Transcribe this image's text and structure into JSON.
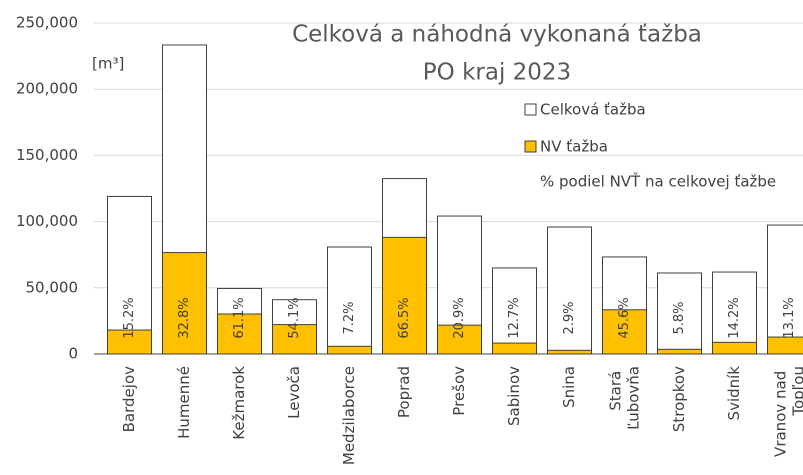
{
  "chart_data": {
    "type": "bar",
    "title": [
      "Celková a náhodná vykonaná ťažba",
      "PO kraj 2023"
    ],
    "y_unit": "[m³]",
    "categories": [
      "Bardejov",
      "Humenné",
      "Kežmarok",
      "Levoča",
      "Medzilaborce",
      "Poprad",
      "Prešov",
      "Sabinov",
      "Snina",
      "Stará Ľubovňa",
      "Stropkov",
      "Svidník",
      "Vranov nad Topľou"
    ],
    "series": [
      {
        "name": "Celková ťažba",
        "color": "#ffffff",
        "values": [
          119000,
          233400,
          49500,
          41000,
          80800,
          132500,
          104200,
          65000,
          95900,
          73300,
          61200,
          61900,
          97400
        ]
      },
      {
        "name": "NV ťažba",
        "color": "#ffc000",
        "values": [
          18100,
          76600,
          30200,
          22200,
          5800,
          88100,
          21800,
          8250,
          2800,
          33400,
          3550,
          8800,
          12800
        ]
      },
      {
        "name": "% podiel NVŤ na celkovej ťažbe",
        "values": [
          15.2,
          32.8,
          61.1,
          54.1,
          7.2,
          66.5,
          20.9,
          12.7,
          2.9,
          45.6,
          5.8,
          14.2,
          13.1
        ],
        "value_labels": [
          "15.2%",
          "32.8%",
          "61.1%",
          "54.1%",
          "7.2%",
          "66.5%",
          "20.9%",
          "12.7%",
          "2.9%",
          "45.6%",
          "5.8%",
          "14.2%",
          "13.1%"
        ]
      }
    ],
    "ylim": [
      0,
      250000
    ],
    "yticks": [
      0,
      {
        "value": 50000,
        "label": "50,000"
      },
      {
        "value": 100000,
        "label": "100,000"
      },
      {
        "value": 150000,
        "label": "150,000"
      },
      {
        "value": 200000,
        "label": "200,000"
      },
      {
        "value": 250000,
        "label": "250,000"
      }
    ],
    "grid": true
  }
}
